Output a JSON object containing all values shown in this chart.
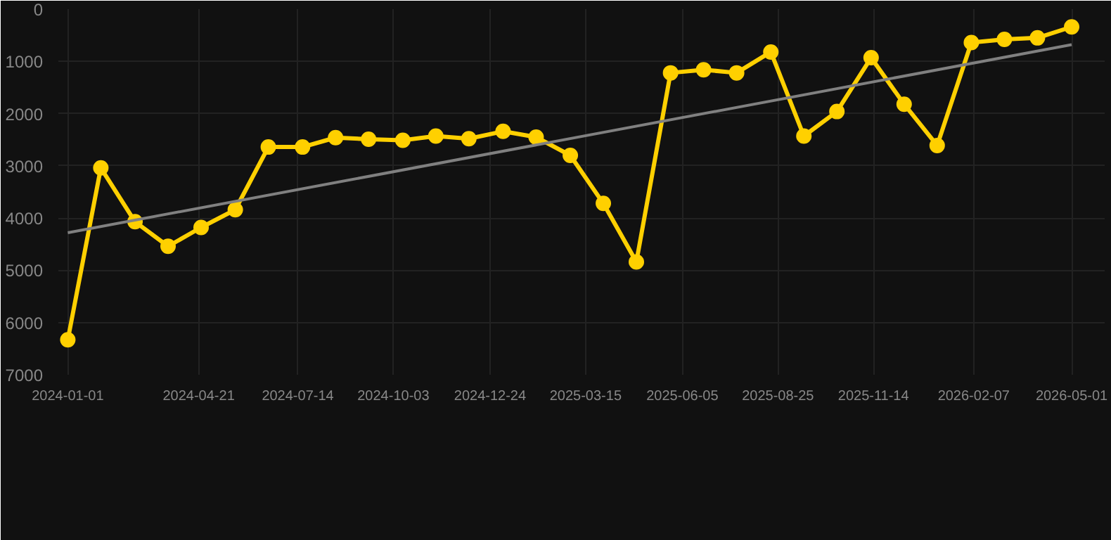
{
  "chart_data": {
    "type": "line",
    "x": [
      "2024-01-01",
      "2024-01-29",
      "2024-02-27",
      "2024-03-26",
      "2024-04-23",
      "2024-05-22",
      "2024-06-19",
      "2024-07-18",
      "2024-08-15",
      "2024-09-12",
      "2024-10-11",
      "2024-11-08",
      "2024-12-06",
      "2025-01-04",
      "2025-02-01",
      "2025-03-02",
      "2025-03-30",
      "2025-04-27",
      "2025-05-26",
      "2025-06-23",
      "2025-07-21",
      "2025-08-19",
      "2025-09-16",
      "2025-10-14",
      "2025-11-12",
      "2025-12-10",
      "2026-01-07",
      "2026-02-05",
      "2026-03-05",
      "2026-04-02",
      "2026-05-01"
    ],
    "series": [
      {
        "color": "#ffd000",
        "marker": "circle",
        "values": [
          6330,
          3040,
          4070,
          4540,
          4180,
          3840,
          2640,
          2640,
          2460,
          2490,
          2510,
          2430,
          2480,
          2340,
          2450,
          2800,
          3720,
          4840,
          1220,
          1160,
          1220,
          820,
          2430,
          1960,
          930,
          1820,
          2610,
          640,
          580,
          550,
          340
        ]
      },
      {
        "type": "line",
        "color": "#808080",
        "marker": "none",
        "x": [
          "2024-01-01",
          "2026-05-01"
        ],
        "values": [
          4280,
          680
        ]
      }
    ],
    "xlim": [
      "2023-12-24",
      "2026-05-29"
    ],
    "xticks": [
      "2024-01-01",
      "2024-04-21",
      "2024-07-14",
      "2024-10-03",
      "2024-12-24",
      "2025-03-15",
      "2025-06-05",
      "2025-08-25",
      "2025-11-14",
      "2026-02-07",
      "2026-05-01"
    ],
    "ylim": [
      7000,
      0
    ],
    "yticks": [
      0,
      1000,
      2000,
      3000,
      4000,
      5000,
      6000,
      7000
    ],
    "grid": true
  }
}
